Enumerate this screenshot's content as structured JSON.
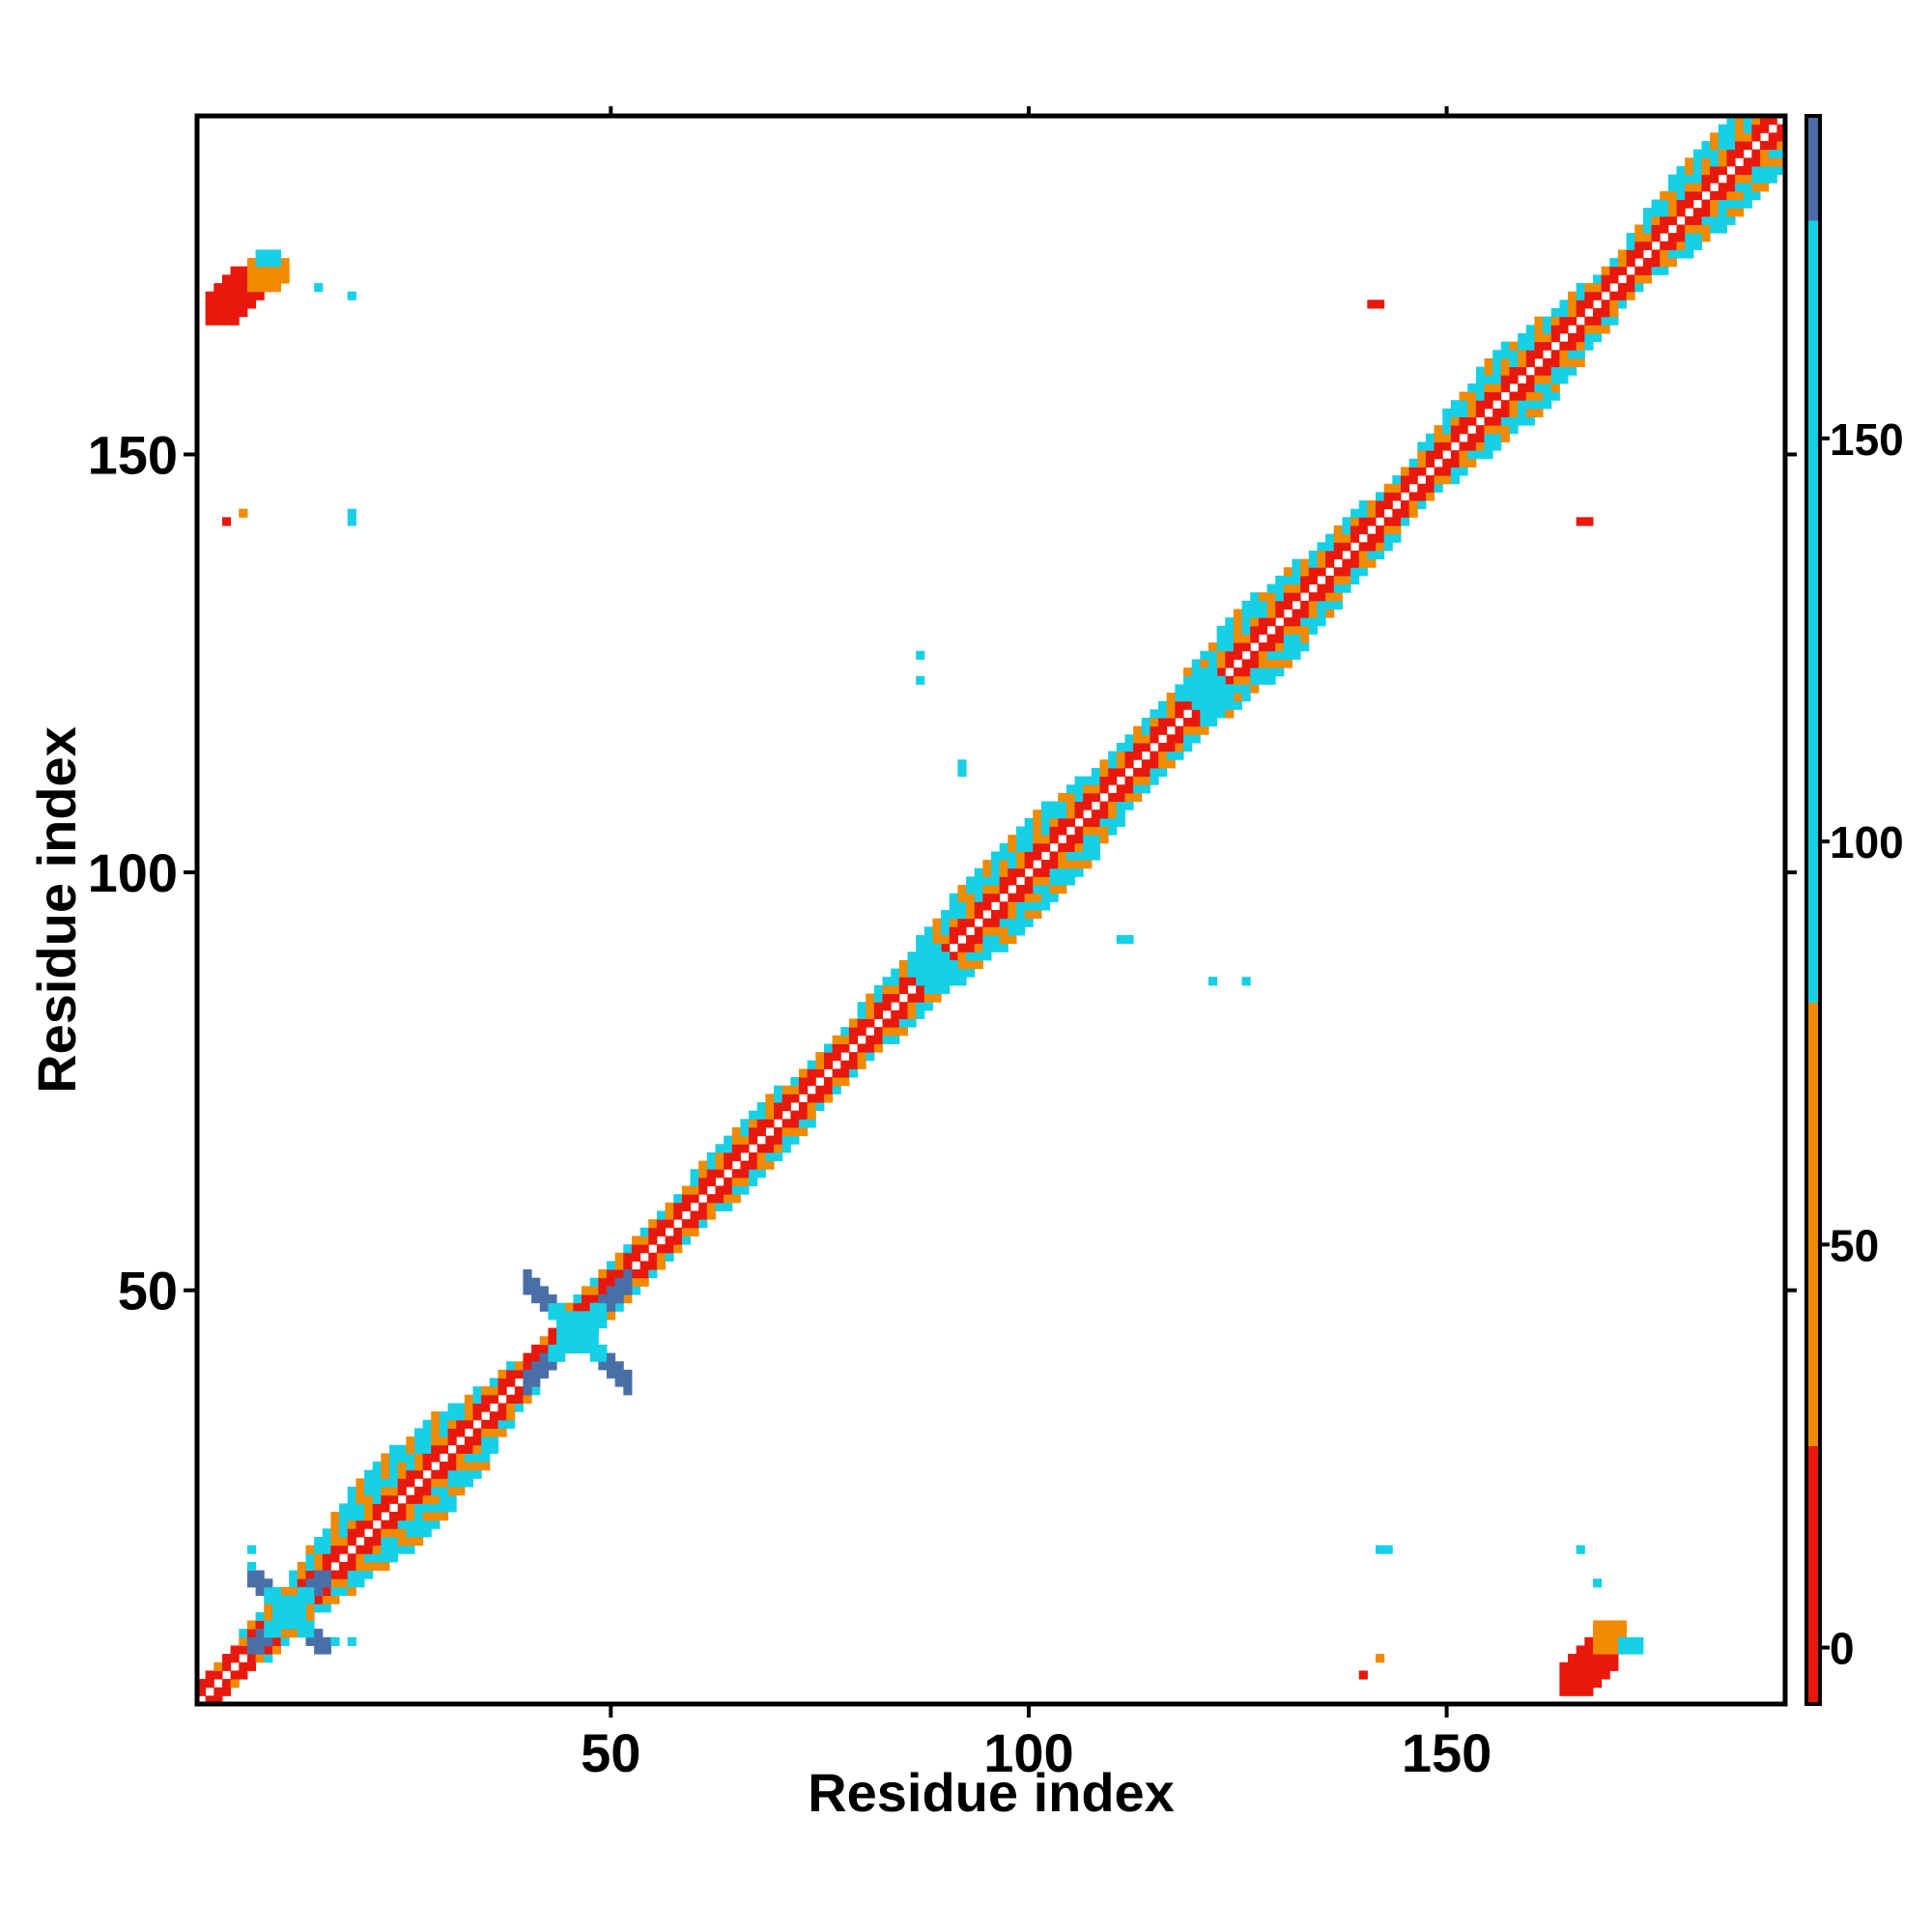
{
  "chart_data": {
    "type": "heatmap",
    "title": "",
    "xlabel": "Residue index",
    "ylabel": "Residue index",
    "xlim": [
      1,
      190
    ],
    "ylim": [
      1,
      190
    ],
    "x_ticks": [
      50,
      100,
      150
    ],
    "y_ticks": [
      50,
      100,
      150
    ],
    "grid": false,
    "colorbar": {
      "ticks": [
        0,
        50,
        100,
        150
      ],
      "range": [
        -7,
        190
      ],
      "bands": [
        {
          "from": -7,
          "to": 25,
          "color": "#e8180c"
        },
        {
          "from": 25,
          "to": 80,
          "color": "#f08a00"
        },
        {
          "from": 80,
          "to": 177,
          "color": "#16d0e6"
        },
        {
          "from": 177,
          "to": 190,
          "color": "#4a6fa8"
        }
      ]
    },
    "diagonal": {
      "from": 1,
      "to": 190,
      "contact_width": [
        [
          1,
          2
        ],
        [
          10,
          3
        ],
        [
          15,
          5
        ],
        [
          20,
          7
        ],
        [
          28,
          6
        ],
        [
          33,
          4
        ],
        [
          40,
          2
        ],
        [
          48,
          3
        ],
        [
          55,
          3
        ],
        [
          65,
          4
        ],
        [
          75,
          3
        ],
        [
          85,
          4
        ],
        [
          92,
          6
        ],
        [
          100,
          6
        ],
        [
          108,
          4
        ],
        [
          117,
          4
        ],
        [
          125,
          6
        ],
        [
          135,
          4
        ],
        [
          145,
          3
        ],
        [
          155,
          6
        ],
        [
          163,
          4
        ],
        [
          170,
          3
        ],
        [
          178,
          6
        ],
        [
          190,
          5
        ]
      ]
    },
    "clusters": [
      {
        "x": [
          2,
          9
        ],
        "y": [
          166,
          172
        ],
        "value": 5
      },
      {
        "x": [
          164,
          170
        ],
        "y": [
          2,
          8
        ],
        "value": 5
      },
      {
        "x": [
          7,
          11
        ],
        "y": [
          170,
          173
        ],
        "value": 60
      },
      {
        "x": [
          168,
          171
        ],
        "y": [
          7,
          10
        ],
        "value": 60
      },
      {
        "x": [
          8,
          10
        ],
        "y": [
          173,
          174
        ],
        "value": 95
      },
      {
        "x": [
          171,
          173
        ],
        "y": [
          7,
          8
        ],
        "value": 95
      },
      {
        "x": [
          40,
          52
        ],
        "y": [
          38,
          52
        ],
        "value": 140,
        "shape": "cross"
      },
      {
        "x": [
          7,
          16
        ],
        "y": [
          7,
          16
        ],
        "value": 110,
        "shape": "cross"
      },
      {
        "x": [
          86,
          91
        ],
        "y": [
          86,
          91
        ],
        "value": 100,
        "shape": "blob"
      },
      {
        "x": [
          119,
          124
        ],
        "y": [
          119,
          124
        ],
        "value": 100,
        "shape": "blob"
      }
    ],
    "points": [
      {
        "x": 15,
        "y": 170,
        "value": 120
      },
      {
        "x": 19,
        "y": 169,
        "value": 100
      },
      {
        "x": 4,
        "y": 142,
        "value": 10
      },
      {
        "x": 6,
        "y": 143,
        "value": 40
      },
      {
        "x": 19,
        "y": 143,
        "value": 100
      },
      {
        "x": 19,
        "y": 142,
        "value": 100
      },
      {
        "x": 87,
        "y": 126,
        "value": 100
      },
      {
        "x": 87,
        "y": 123,
        "value": 100
      },
      {
        "x": 92,
        "y": 112,
        "value": 100
      },
      {
        "x": 92,
        "y": 113,
        "value": 100
      },
      {
        "x": 111,
        "y": 92,
        "value": 100
      },
      {
        "x": 112,
        "y": 92,
        "value": 100
      },
      {
        "x": 122,
        "y": 87,
        "value": 100
      },
      {
        "x": 126,
        "y": 87,
        "value": 100
      },
      {
        "x": 141,
        "y": 168,
        "value": 10
      },
      {
        "x": 142,
        "y": 168,
        "value": 10
      },
      {
        "x": 166,
        "y": 142,
        "value": 10
      },
      {
        "x": 167,
        "y": 142,
        "value": 10
      },
      {
        "x": 142,
        "y": 19,
        "value": 100
      },
      {
        "x": 143,
        "y": 19,
        "value": 100
      },
      {
        "x": 166,
        "y": 19,
        "value": 100
      },
      {
        "x": 168,
        "y": 15,
        "value": 120
      },
      {
        "x": 140,
        "y": 4,
        "value": 10
      },
      {
        "x": 142,
        "y": 6,
        "value": 40
      },
      {
        "x": 19,
        "y": 8,
        "value": 120
      },
      {
        "x": 17,
        "y": 8,
        "value": 120
      },
      {
        "x": 7,
        "y": 19,
        "value": 120
      },
      {
        "x": 7,
        "y": 17,
        "value": 120
      }
    ]
  }
}
